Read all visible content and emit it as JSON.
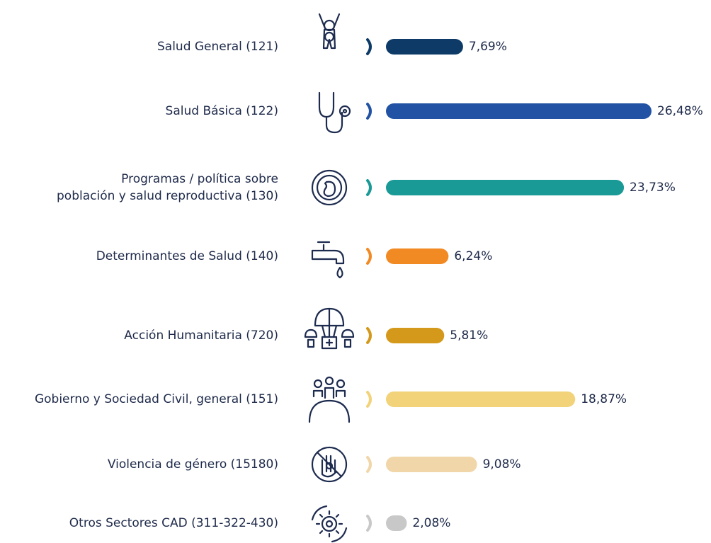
{
  "chart_data": {
    "type": "bar",
    "orientation": "horizontal",
    "categories": [
      "Salud General (121)",
      "Salud Básica (122)",
      [
        "Programas / política sobre",
        "población y salud reproductiva (130)"
      ],
      "Determinantes de Salud (140)",
      "Acción Humanitaria (720)",
      "Gobierno y Sociedad Civil, general (151)",
      "Violencia de género (15180)",
      "Otros Sectores CAD (311-322-430)"
    ],
    "values": [
      7.69,
      26.48,
      23.73,
      6.24,
      5.81,
      18.87,
      9.08,
      2.08
    ],
    "value_labels": [
      "7,69%",
      "26,48%",
      "23,73%",
      "6,24%",
      "5,81%",
      "18,87%",
      "9,08%",
      "2,08%"
    ],
    "colors": [
      "#0d3a66",
      "#2252a3",
      "#1a9a96",
      "#f28a24",
      "#d4991a",
      "#f2d37a",
      "#f0d6a8",
      "#c8c8c8"
    ]
  }
}
